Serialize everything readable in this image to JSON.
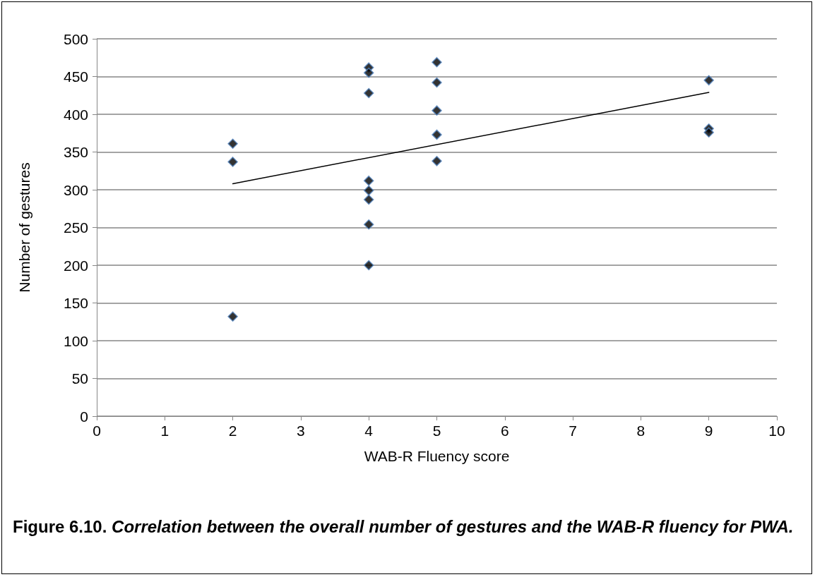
{
  "chart_data": {
    "type": "scatter",
    "title": "Figure 6.10. Correlation between the overall number of gestures and the WAB-R fluency for PWA.",
    "xlabel": "WAB-R Fluency score",
    "ylabel": "Number of gestures",
    "xlim": [
      0,
      10
    ],
    "xticks": [
      0,
      1,
      2,
      3,
      4,
      5,
      6,
      7,
      8,
      9,
      10
    ],
    "ylim": [
      0,
      500
    ],
    "yticks": [
      0,
      50,
      100,
      150,
      200,
      250,
      300,
      350,
      400,
      450,
      500
    ],
    "grid": "y",
    "marker": "diamond",
    "series": [
      {
        "color": "#000000",
        "x": [
          2,
          2,
          2,
          4,
          4,
          4,
          4,
          4,
          4,
          4,
          4,
          5,
          5,
          5,
          5,
          5,
          9,
          9,
          9
        ],
        "values": [
          361,
          337,
          132,
          462,
          455,
          428,
          312,
          299,
          287,
          254,
          200,
          469,
          442,
          405,
          373,
          338,
          445,
          381,
          376
        ]
      },
      {
        "type": "line",
        "color": "#000000",
        "marker": "none",
        "line_style": "solid",
        "x": [
          2,
          9
        ],
        "values": [
          308,
          429
        ]
      }
    ]
  }
}
